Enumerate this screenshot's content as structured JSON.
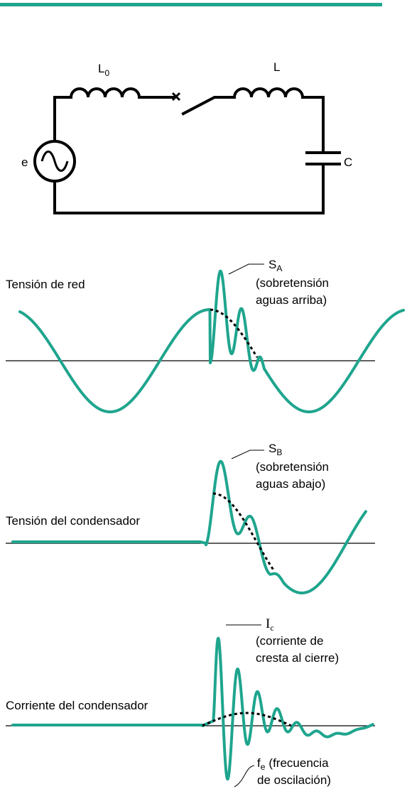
{
  "circuit": {
    "source": "e",
    "inductor_line": {
      "base": "L",
      "sub": "0"
    },
    "inductor_load": "L",
    "capacitor": "C"
  },
  "panels": [
    {
      "label": "Tensión de red",
      "annotations": [
        {
          "symbol": {
            "base": "S",
            "sub": "A"
          },
          "lines": [
            "(sobretensión",
            "aguas arriba)"
          ]
        }
      ]
    },
    {
      "label": "Tensión del condensador",
      "annotations": [
        {
          "symbol": {
            "base": "S",
            "sub": "B"
          },
          "lines": [
            "(sobretensión",
            "aguas abajo)"
          ]
        }
      ]
    },
    {
      "label": "Corriente del condensador",
      "annotations": [
        {
          "symbol": {
            "base": "I",
            "sub": "c"
          },
          "lines": [
            "(corriente de",
            "cresta al cierre)"
          ]
        },
        {
          "symbol": {
            "base": "f",
            "sub": "e"
          },
          "lines": [
            "(frecuencia",
            "de oscilación)"
          ]
        }
      ]
    }
  ]
}
